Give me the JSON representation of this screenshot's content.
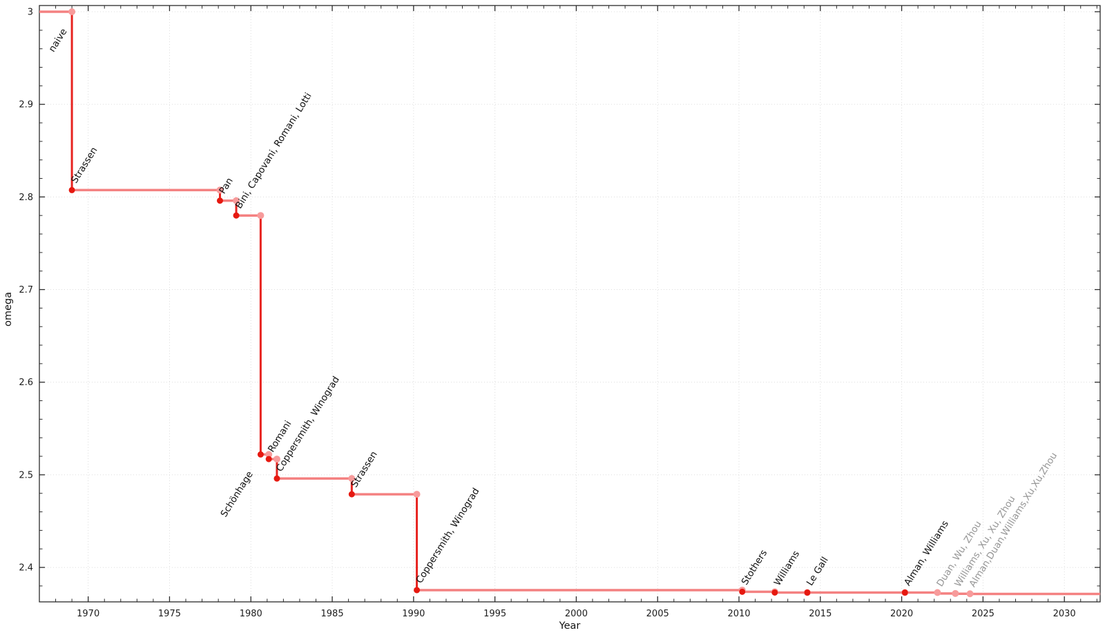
{
  "chart_data": {
    "type": "line",
    "variant": "step",
    "title": "",
    "xlabel": "Year",
    "ylabel": "omega",
    "xlim": [
      1967.0,
      2032.2
    ],
    "ylim": [
      2.3628,
      3.0067
    ],
    "grid": "dotted-major",
    "legend_position": "none",
    "x_ticks": {
      "values": [
        1970,
        1975,
        1980,
        1985,
        1990,
        1995,
        2000,
        2005,
        2010,
        2015,
        2020,
        2025,
        2030
      ],
      "labels": [
        "1970",
        "1975",
        "1980",
        "1985",
        "1990",
        "1995",
        "2000",
        "2005",
        "2010",
        "2015",
        "2020",
        "2025",
        "2030"
      ],
      "minor_step": 1
    },
    "y_ticks": {
      "values": [
        3.0,
        2.9,
        2.8,
        2.7,
        2.6,
        2.5,
        2.4
      ],
      "labels": [
        "3",
        "2.9",
        "2.8",
        "2.7",
        "2.6",
        "2.5",
        "2.4"
      ],
      "minor_step": 0.02
    },
    "start_plateau": {
      "label": "naive",
      "omega": 3.0
    },
    "events": [
      {
        "year": 1969.0,
        "omega": 2.8074,
        "label": "Strassen"
      },
      {
        "year": 1978.1,
        "omega": 2.796,
        "label": "Pan"
      },
      {
        "year": 1979.1,
        "omega": 2.78,
        "label": "Bini, Capovani, Romani, Lotti"
      },
      {
        "year": 1980.6,
        "omega": 2.522,
        "label": "Schönhage",
        "label_anchor": "below-left"
      },
      {
        "year": 1981.1,
        "omega": 2.517,
        "label": "Romani"
      },
      {
        "year": 1981.6,
        "omega": 2.496,
        "label": "Coppersmith, Winograd"
      },
      {
        "year": 1986.2,
        "omega": 2.479,
        "label": "Strassen"
      },
      {
        "year": 1990.2,
        "omega": 2.3755,
        "label": "Coppersmith, Winograd"
      },
      {
        "year": 2010.2,
        "omega": 2.3737,
        "label": "Stothers"
      },
      {
        "year": 2012.2,
        "omega": 2.3729,
        "label": "Williams"
      },
      {
        "year": 2014.2,
        "omega": 2.3728639,
        "label": "Le Gall"
      },
      {
        "year": 2020.2,
        "omega": 2.3728596,
        "label": "Alman, Williams"
      },
      {
        "year": 2022.2,
        "omega": 2.37188,
        "label": "Duan, Wu, Zhou",
        "muted": true
      },
      {
        "year": 2023.3,
        "omega": 2.371552,
        "label": "Williams, Xu, Xu, Zhou",
        "muted": true
      },
      {
        "year": 2024.2,
        "omega": 2.371339,
        "label": "Alman,Duan,Williams,Xu,Xu,Zhou",
        "muted": true
      }
    ]
  },
  "colors": {
    "plateau_line": "#f48181",
    "drop_line": "#e72420",
    "top_dot": "#f79b9b",
    "bottom_dot": "#e61910",
    "label": "#111111",
    "muted_label": "#969696",
    "grid": "#dcdcdc",
    "axis": "#2a2a2a",
    "tick_label": "#1c1c1c",
    "background": "#ffffff"
  }
}
